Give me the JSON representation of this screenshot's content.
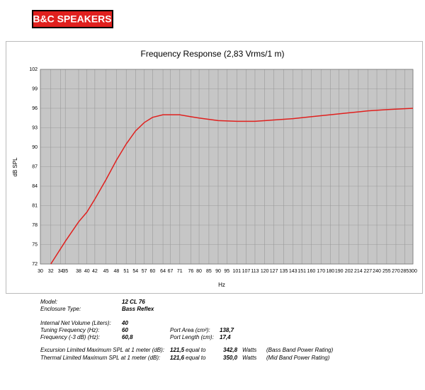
{
  "logo": "B&C SPEAKERS",
  "chart_data": {
    "type": "line",
    "title": "Frequency Response (2,83 Vrms/1 m)",
    "x_label": "Hz",
    "y_label": "dB SPL",
    "xscale": "log",
    "grid": true,
    "color": "#e0201e",
    "x": [
      32,
      35,
      38,
      40,
      42,
      45,
      48,
      51,
      54,
      57,
      60,
      64,
      67,
      71,
      76,
      80,
      85,
      90,
      101,
      113,
      127,
      143,
      160,
      180,
      202,
      227,
      255,
      300
    ],
    "values": [
      72,
      75.5,
      78.5,
      80,
      82,
      85,
      88,
      90.5,
      92.5,
      93.8,
      94.6,
      95,
      95,
      95,
      94.7,
      94.5,
      94.3,
      94.1,
      94,
      94,
      94.2,
      94.4,
      94.7,
      95,
      95.3,
      95.6,
      95.8,
      96
    ],
    "xlim": [
      30,
      300
    ],
    "ylim": [
      72,
      102
    ],
    "xticks": [
      30,
      32,
      34,
      35,
      38,
      40,
      42,
      45,
      48,
      51,
      54,
      57,
      60,
      64,
      67,
      71,
      76,
      80,
      85,
      90,
      95,
      101,
      107,
      113,
      120,
      127,
      135,
      143,
      151,
      160,
      170,
      180,
      190,
      202,
      214,
      227,
      240,
      255,
      270,
      285,
      300
    ],
    "yticks": [
      72,
      75,
      78,
      81,
      84,
      87,
      90,
      93,
      96,
      99,
      102
    ]
  },
  "specs": {
    "rows": [
      [
        "Model:",
        "12 CL 76"
      ],
      [
        "Enclosure Type:",
        "Bass Reflex"
      ],
      [
        "Internal Net Volume (Liters):",
        "40"
      ],
      [
        "Tuning Frequency (Hz):",
        "60",
        "Port Area (cm²):",
        "138,7"
      ],
      [
        "Frequency (-3 dB) (Hz):",
        "60,8",
        "Port Length (cm):",
        "17,4"
      ],
      [
        "Excursion Limited Maximum SPL at 1 meter (dB):",
        "121,5",
        "equal to",
        "342,8",
        "Watts",
        "(Bass Band Power Rating)"
      ],
      [
        "Thermal Limited Maximum SPL at 1 meter (dB):",
        "121,6",
        "equal to",
        "350,0",
        "Watts",
        "(Mid Band Power Rating)"
      ]
    ]
  }
}
